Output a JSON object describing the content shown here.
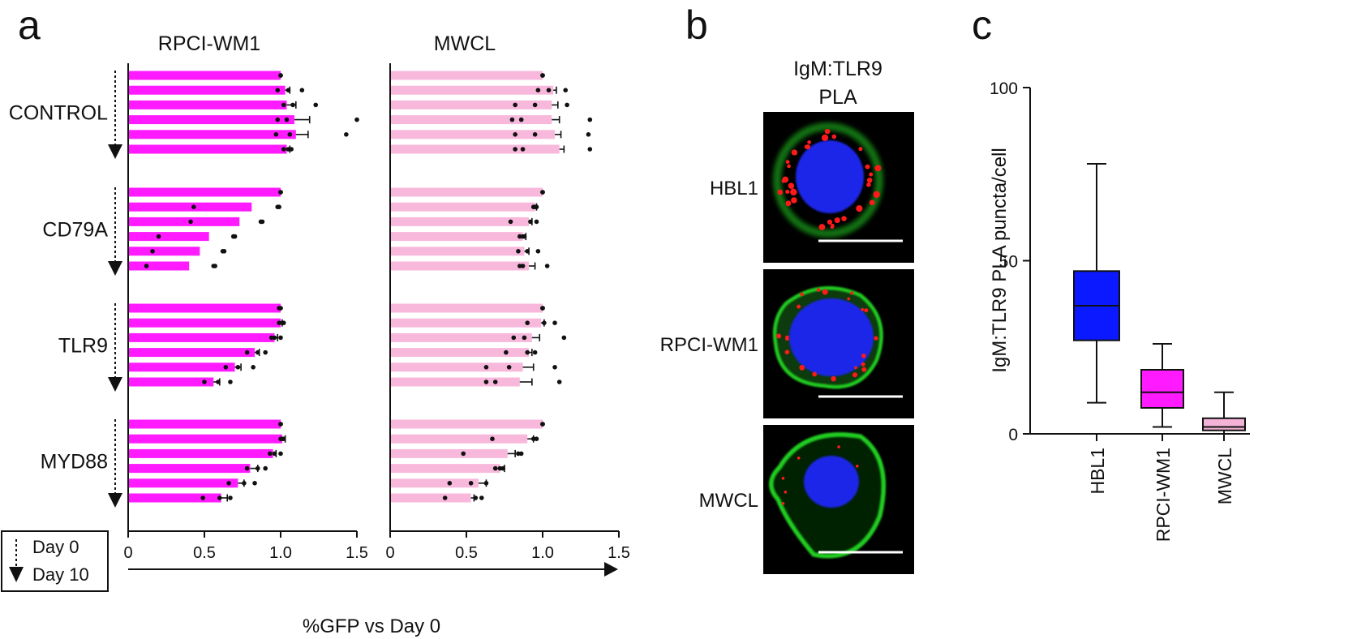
{
  "panel_letters": {
    "a": "a",
    "b": "b",
    "c": "c"
  },
  "legend": {
    "start": "Day 0",
    "end": "Day 10"
  },
  "colors": {
    "rpci": "#ff1aff",
    "mwcl": "#f8b8dc",
    "hbl1_box": "#0a19ff",
    "rpci_box": "#ff1aff",
    "mwcl_box": "#f4b2d6",
    "dots": "#111111",
    "nucleus": "#1a25e8",
    "membrane": "#20d020",
    "puncta": "#ff1a1a"
  },
  "chart_data": [
    {
      "panel": "a",
      "type": "bar",
      "orientation": "horizontal",
      "shared_xlabel": "%GFP vs Day 0",
      "xlim": [
        0,
        1.5
      ],
      "xticks": [
        "0",
        "0.5",
        "1.0",
        "1.5"
      ],
      "xtick_values": [
        0,
        0.5,
        1.0,
        1.5
      ],
      "groups": [
        "CONTROL",
        "CD79A",
        "TLR9",
        "MYD88"
      ],
      "subpanels": [
        {
          "title": "RPCI-WM1",
          "color_key": "rpci",
          "values": [
            [
              1.0,
              1.03,
              1.04,
              1.09,
              1.1,
              1.04
            ],
            [
              1.0,
              0.81,
              0.73,
              0.53,
              0.47,
              0.4
            ],
            [
              1.0,
              1.0,
              0.96,
              0.83,
              0.7,
              0.56
            ],
            [
              1.0,
              1.01,
              0.95,
              0.8,
              0.72,
              0.61
            ]
          ],
          "errors": [
            [
              0.0,
              0.03,
              0.06,
              0.1,
              0.08,
              0.02
            ],
            [
              0.0,
              0.0,
              0.0,
              0.0,
              0.0,
              0.0
            ],
            [
              0.0,
              0.01,
              0.02,
              0.03,
              0.04,
              0.04
            ],
            [
              0.0,
              0.02,
              0.02,
              0.05,
              0.04,
              0.04
            ]
          ],
          "points": [
            [
              [
                1.0,
                1.0,
                1.0
              ],
              [
                0.98,
                1.05,
                1.14
              ],
              [
                1.02,
                1.08,
                1.23
              ],
              [
                0.98,
                1.04,
                1.5
              ],
              [
                0.97,
                1.06,
                1.43
              ],
              [
                1.02,
                1.05,
                1.07
              ]
            ],
            [
              [
                1.0,
                1.0,
                1.0
              ],
              [
                0.43,
                0.98,
                0.99
              ],
              [
                0.41,
                0.87,
                0.88
              ],
              [
                0.2,
                0.69,
                0.7
              ],
              [
                0.16,
                0.62,
                0.63
              ],
              [
                0.12,
                0.56,
                0.57
              ]
            ],
            [
              [
                0.99,
                1.0,
                1.0
              ],
              [
                0.99,
                1.01,
                1.02
              ],
              [
                0.94,
                0.96,
                1.0
              ],
              [
                0.78,
                0.85,
                0.9
              ],
              [
                0.64,
                0.72,
                0.82
              ],
              [
                0.5,
                0.59,
                0.67
              ]
            ],
            [
              [
                1.0,
                1.0,
                1.0
              ],
              [
                1.0,
                1.01,
                1.02
              ],
              [
                0.93,
                0.96,
                1.0
              ],
              [
                0.78,
                0.85,
                0.9
              ],
              [
                0.66,
                0.76,
                0.83
              ],
              [
                0.49,
                0.6,
                0.67
              ]
            ]
          ]
        },
        {
          "title": "MWCL",
          "color_key": "mwcl",
          "values": [
            [
              1.0,
              1.07,
              1.06,
              1.06,
              1.08,
              1.11
            ],
            [
              1.0,
              0.95,
              0.91,
              0.87,
              0.88,
              0.91
            ],
            [
              1.0,
              0.99,
              0.93,
              0.91,
              0.87,
              0.85
            ],
            [
              1.0,
              0.9,
              0.77,
              0.72,
              0.58,
              0.53
            ]
          ],
          "errors": [
            [
              0.0,
              0.02,
              0.04,
              0.05,
              0.04,
              0.03
            ],
            [
              0.0,
              0.01,
              0.02,
              0.02,
              0.03,
              0.04
            ],
            [
              0.0,
              0.02,
              0.05,
              0.02,
              0.07,
              0.08
            ],
            [
              0.0,
              0.04,
              0.05,
              0.03,
              0.05,
              0.02
            ]
          ],
          "points": [
            [
              [
                1.0,
                1.0,
                1.0
              ],
              [
                0.97,
                1.04,
                1.15
              ],
              [
                0.82,
                0.95,
                1.16
              ],
              [
                0.8,
                0.86,
                1.31
              ],
              [
                0.82,
                0.95,
                1.3
              ],
              [
                0.82,
                0.87,
                1.31
              ]
            ],
            [
              [
                1.0,
                1.0,
                1.0
              ],
              [
                0.94,
                0.95,
                0.96
              ],
              [
                0.79,
                0.92,
                0.96
              ],
              [
                0.85,
                0.87,
                0.88
              ],
              [
                0.84,
                0.9,
                0.97
              ],
              [
                0.85,
                0.87,
                1.03
              ]
            ],
            [
              [
                1.0,
                1.0,
                1.0
              ],
              [
                0.9,
                1.01,
                1.08
              ],
              [
                0.81,
                0.88,
                1.14
              ],
              [
                0.76,
                0.9,
                0.95
              ],
              [
                0.63,
                0.78,
                1.08
              ],
              [
                0.63,
                0.69,
                1.11
              ]
            ],
            [
              [
                1.0,
                1.0,
                1.0
              ],
              [
                0.67,
                0.94,
                0.96
              ],
              [
                0.48,
                0.84,
                0.86
              ],
              [
                0.69,
                0.72,
                0.74
              ],
              [
                0.39,
                0.53,
                0.63
              ],
              [
                0.36,
                0.56,
                0.6
              ]
            ]
          ]
        }
      ]
    },
    {
      "panel": "b",
      "type": "image-grid",
      "title_lines": [
        "IgM:TLR9",
        "PLA"
      ],
      "rows": [
        "HBL1",
        "RPCI-WM1",
        "MWCL"
      ]
    },
    {
      "panel": "c",
      "type": "box",
      "ylabel": "IgM:TLR9 PLA puncta/cell",
      "ylim": [
        0,
        100
      ],
      "yticks": [
        "0",
        "50",
        "100"
      ],
      "ytick_values": [
        0,
        50,
        100
      ],
      "categories": [
        "HBL1",
        "RPCI-WM1",
        "MWCL"
      ],
      "color_keys": [
        "hbl1_box",
        "rpci_box",
        "mwcl_box"
      ],
      "boxes": [
        {
          "min": 9,
          "q1": 27,
          "median": 37,
          "q3": 47,
          "max": 78
        },
        {
          "min": 2,
          "q1": 7.5,
          "median": 12,
          "q3": 18.5,
          "max": 26
        },
        {
          "min": 0,
          "q1": 1,
          "median": 2,
          "q3": 4.5,
          "max": 12
        }
      ]
    }
  ]
}
